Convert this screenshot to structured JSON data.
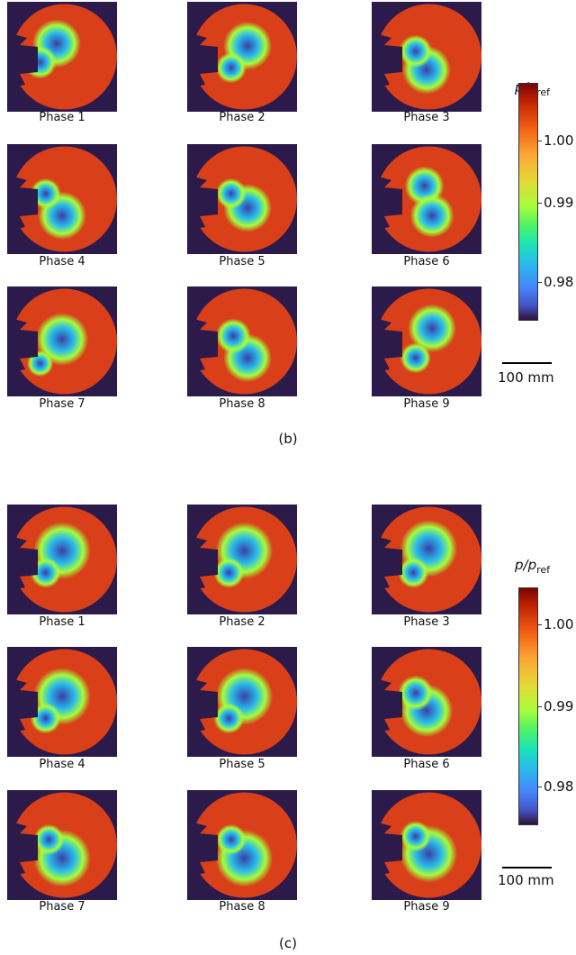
{
  "figure_b": {
    "label": "(b)",
    "phases": [
      "Phase 1",
      "Phase 2",
      "Phase 3",
      "Phase 4",
      "Phase 5",
      "Phase 6",
      "Phase 7",
      "Phase 8",
      "Phase 9"
    ],
    "colorbar": {
      "title_main": "p/p",
      "title_sub": "ref",
      "ticks": [
        "1.00",
        "0.99",
        "0.98"
      ]
    },
    "scalebar": "100 mm"
  },
  "figure_c": {
    "label": "(c)",
    "phases": [
      "Phase 1",
      "Phase 2",
      "Phase 3",
      "Phase 4",
      "Phase 5",
      "Phase 6",
      "Phase 7",
      "Phase 8",
      "Phase 9"
    ],
    "colorbar": {
      "title_main": "p/p",
      "title_sub": "ref",
      "ticks": [
        "1.00",
        "0.99",
        "0.98"
      ]
    },
    "scalebar": "100 mm"
  },
  "colors": {
    "background": "#2b1a4a",
    "high": "#d9401a",
    "mid": "#a4fc3c",
    "low": "#3b3fa8"
  }
}
